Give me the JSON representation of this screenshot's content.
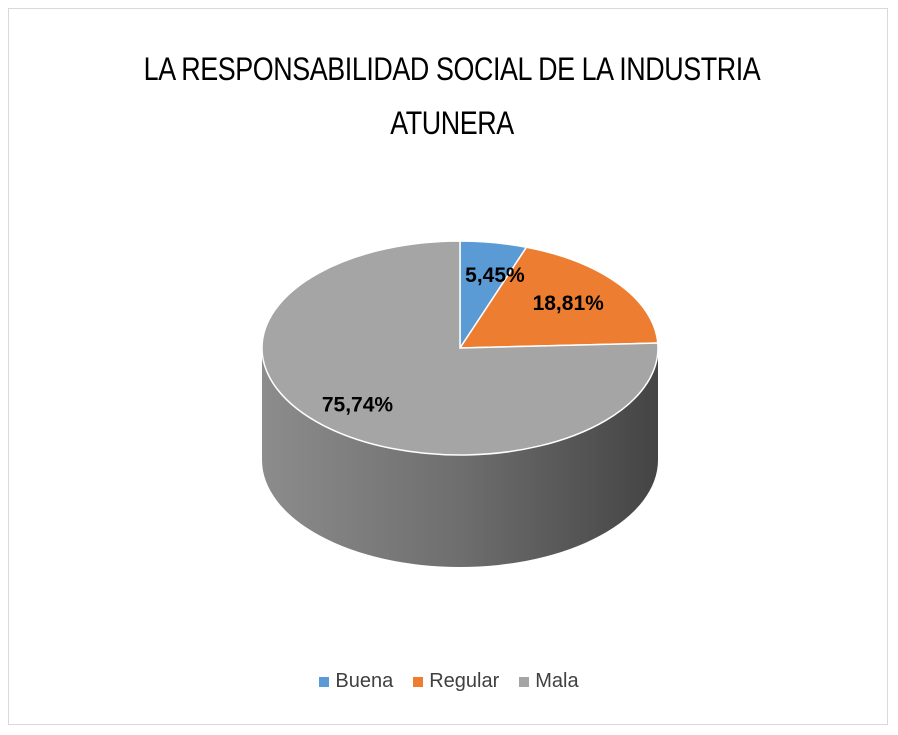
{
  "chart_data": {
    "type": "pie",
    "title": "LA RESPONSABILIDAD SOCIAL DE LA INDUSTRIA ATUNERA",
    "categories": [
      "Buena",
      "Regular",
      "Mala"
    ],
    "values": [
      5.45,
      18.81,
      75.74
    ],
    "value_labels": [
      "5,45%",
      "18,81%",
      "75,74%"
    ],
    "colors": [
      "#5b9bd5",
      "#ed7d31",
      "#a5a5a5"
    ],
    "legend": "bottom"
  }
}
